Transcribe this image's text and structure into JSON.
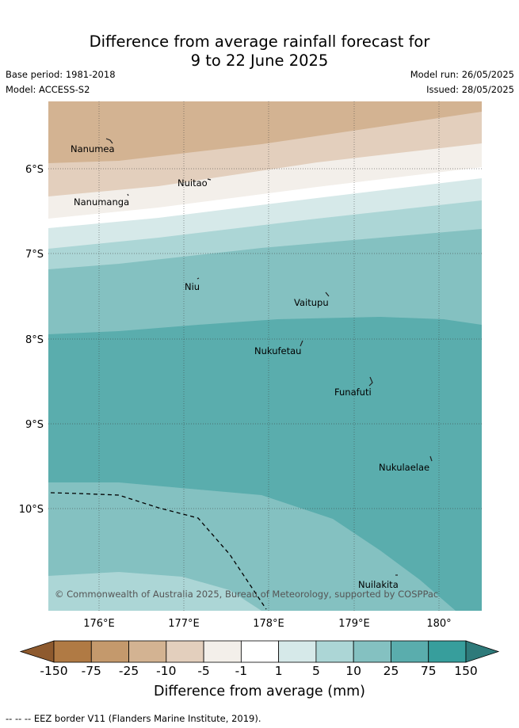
{
  "header": {
    "title_line1": "Difference from average rainfall forecast for",
    "title_line2": "9 to 22 June 2025",
    "base_period": "Base period: 1981-2018",
    "model": "Model: ACCESS-S2",
    "model_run": "Model run: 26/05/2025",
    "issued": "Issued: 28/05/2025"
  },
  "map": {
    "lat_labels": [
      "6°S",
      "7°S",
      "8°S",
      "9°S",
      "10°S"
    ],
    "lon_labels": [
      "176°E",
      "177°E",
      "178°E",
      "179°E",
      "180°"
    ],
    "islands": [
      {
        "name": "Nanumea"
      },
      {
        "name": "Nuitao"
      },
      {
        "name": "Nanumanga"
      },
      {
        "name": "Niu"
      },
      {
        "name": "Vaitupu"
      },
      {
        "name": "Nukufetau"
      },
      {
        "name": "Funafuti"
      },
      {
        "name": "Nukulaelae"
      },
      {
        "name": "Nuilakita"
      }
    ],
    "copyright": "© Commonwealth of Australia 2025, Bureau of Meteorology, supported by COSPPac"
  },
  "colorbar": {
    "labels": [
      "-150",
      "-75",
      "-25",
      "-10",
      "-5",
      "-1",
      "1",
      "5",
      "10",
      "25",
      "75",
      "150"
    ],
    "colors": [
      "#8e5a2e",
      "#b07a44",
      "#c4996c",
      "#d3b392",
      "#e3cfbd",
      "#f3efea",
      "#ffffff",
      "#d6e9e9",
      "#acd6d6",
      "#84c1c1",
      "#5aadad",
      "#379e9c",
      "#2e7a7a"
    ],
    "title": "Difference from average (mm)"
  },
  "footer": {
    "legend_text": "-- -- -- EEZ border V11 (Flanders Marine Institute, 2019)."
  }
}
